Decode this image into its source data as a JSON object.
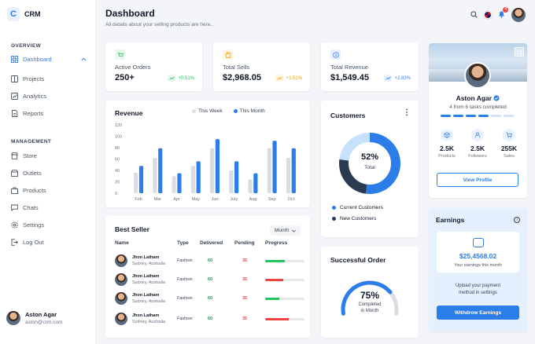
{
  "brand": {
    "name": "CRM",
    "mark": "C"
  },
  "sidebar": {
    "sections": {
      "overview": "OVERVIEW",
      "management": "MANAGEMENT"
    },
    "overview_items": [
      {
        "label": "Dashboard",
        "icon": "dashboard-icon",
        "active": true
      },
      {
        "label": "Projects",
        "icon": "projects-icon"
      },
      {
        "label": "Analytics",
        "icon": "analytics-icon"
      },
      {
        "label": "Reports",
        "icon": "reports-icon"
      }
    ],
    "management_items": [
      {
        "label": "Store",
        "icon": "store-icon"
      },
      {
        "label": "Outlets",
        "icon": "outlets-icon"
      },
      {
        "label": "Products",
        "icon": "products-icon"
      },
      {
        "label": "Chats",
        "icon": "chats-icon"
      },
      {
        "label": "Settings",
        "icon": "settings-icon"
      },
      {
        "label": "Log Out",
        "icon": "logout-icon"
      }
    ],
    "user": {
      "name": "Aston Agar",
      "email": "aston@crm.com"
    }
  },
  "header": {
    "title": "Dashboard",
    "subtitle": "All details about your selling products are here..",
    "notification_count": "4"
  },
  "stats": [
    {
      "label": "Active Orders",
      "value": "250+",
      "change": "+0.51%",
      "trend": "up",
      "color": "#22c55e",
      "bg": "#e8f8ee"
    },
    {
      "label": "Total Sells",
      "value": "$2,968.05",
      "change": "+1.51%",
      "trend": "up",
      "color": "#f59e0b",
      "bg": "#fff4e0"
    },
    {
      "label": "Total Revenue",
      "value": "$1,549.45",
      "change": "+2.83%",
      "trend": "up",
      "color": "#3b82f6",
      "bg": "#e6f0fe"
    }
  ],
  "revenue": {
    "title": "Revenue",
    "legend": [
      "This Week",
      "This Month"
    ],
    "colors": [
      "#d9dde3",
      "#2b7de9"
    ]
  },
  "chart_data": {
    "type": "bar",
    "categories": [
      "Feb",
      "Mar",
      "Apr",
      "May",
      "Jun",
      "July",
      "Aug",
      "Sep",
      "Oct"
    ],
    "series": [
      {
        "name": "This Week",
        "values": [
          36,
          62,
          30,
          48,
          79,
          40,
          24,
          79,
          62
        ]
      },
      {
        "name": "This Month",
        "values": [
          48,
          79,
          35,
          56,
          95,
          56,
          35,
          92,
          79
        ]
      }
    ],
    "yticks": [
      0,
      20,
      40,
      60,
      80,
      100,
      120
    ],
    "ylim": [
      0,
      120
    ]
  },
  "best_seller": {
    "title": "Best Seller",
    "filter": "Month",
    "columns": [
      "Name",
      "Type",
      "Delivered",
      "Pending",
      "Progress"
    ],
    "rows": [
      {
        "name": "Jhon Latham",
        "location": "Sydney, Australia",
        "type": "Fashion",
        "delivered": "60",
        "pending": "35",
        "progress": 0.5,
        "progress_color": "#22c55e"
      },
      {
        "name": "Jhon Latham",
        "location": "Sydney, Australia",
        "type": "Fashion",
        "delivered": "60",
        "pending": "35",
        "progress": 0.45,
        "progress_color": "#ef4444"
      },
      {
        "name": "Jhon Latham",
        "location": "Sydney, Australia",
        "type": "Fashion",
        "delivered": "60",
        "pending": "35",
        "progress": 0.35,
        "progress_color": "#22c55e"
      },
      {
        "name": "Jhon Latham",
        "location": "Sydney, Australia",
        "type": "Fashion",
        "delivered": "60",
        "pending": "35",
        "progress": 0.6,
        "progress_color": "#ef4444"
      }
    ]
  },
  "customers": {
    "title": "Customers",
    "percent": "52%",
    "percent_label": "Total",
    "segments": [
      {
        "value": 0.52,
        "color": "#2b7de9"
      },
      {
        "value": 0.25,
        "color": "#2a3a4f"
      },
      {
        "value": 0.23,
        "color": "#c7e0fb"
      }
    ],
    "legend": [
      {
        "label": "Current Customers",
        "color": "#2b7de9"
      },
      {
        "label": "New Customers",
        "color": "#2a3a4f"
      }
    ]
  },
  "successful_order": {
    "title": "Successful Order",
    "percent": "75%",
    "label_line1": "Completed",
    "label_line2": "in Month",
    "value": 0.75
  },
  "profile": {
    "name": "Aston Agar",
    "tasks": "4 from 6 tasks completed",
    "tasks_done": 4,
    "tasks_total": 6,
    "stats": [
      {
        "value": "2.5K",
        "label": "Products",
        "icon": "products-icon"
      },
      {
        "value": "2.5K",
        "label": "Followers",
        "icon": "followers-icon"
      },
      {
        "value": "255K",
        "label": "Sales",
        "icon": "sales-icon"
      }
    ],
    "button": "View Profile"
  },
  "earnings": {
    "title": "Earnings",
    "value": "$25,4568.02",
    "note": "Your earnings this month",
    "message_line1": "Upload your payment",
    "message_line2": "method in settings",
    "button": "Withdrow Earnings"
  }
}
